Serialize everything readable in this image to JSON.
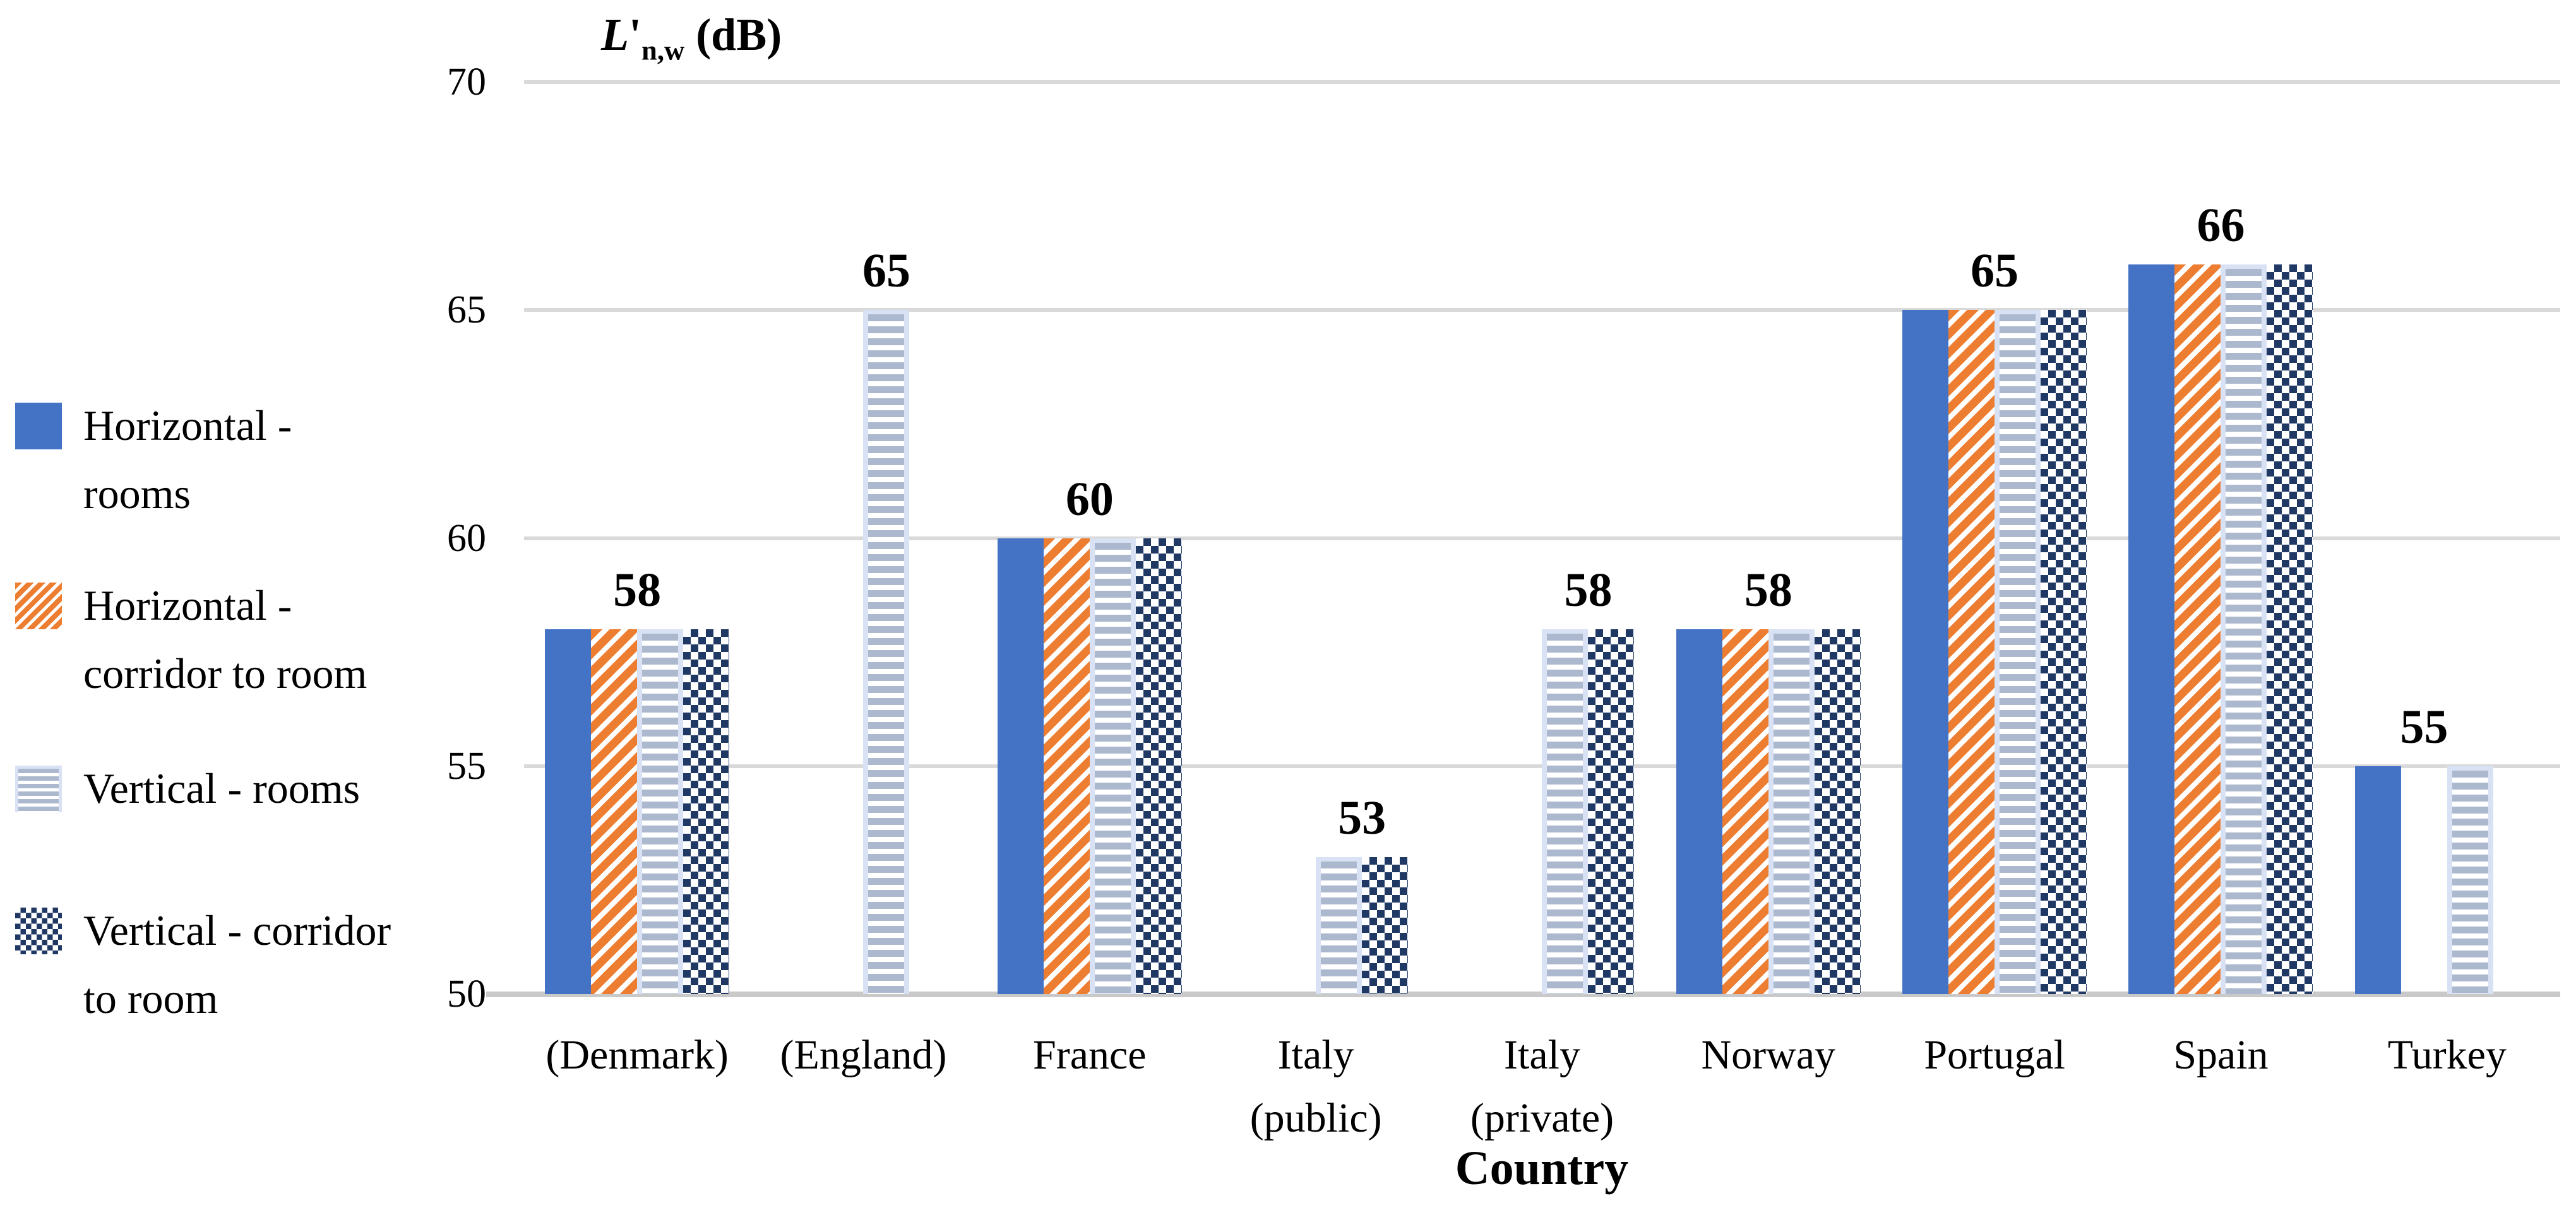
{
  "title": {
    "symbol": "L",
    "prime": "'",
    "subscript": "n,w",
    "unit": " (dB)"
  },
  "colors": {
    "horizontal_rooms": "#4472C4",
    "horizontal_corridor": "#ED7D31",
    "vertical_rooms_stripe": "#ABB8CD",
    "vertical_rooms_border": "#D9E2F4",
    "vertical_corridor": "#1F3864",
    "gridline": "#D9D9D9",
    "axis_line": "#C9C9C9"
  },
  "legend": [
    {
      "pattern": "solid-blue",
      "lines": [
        "Horizontal -",
        "rooms"
      ]
    },
    {
      "pattern": "orange-diagonal",
      "lines": [
        "Horizontal -",
        "corridor to room"
      ]
    },
    {
      "pattern": "light-stripes",
      "lines": [
        "Vertical - rooms"
      ]
    },
    {
      "pattern": "navy-checker",
      "lines": [
        "Vertical - corridor",
        "to room"
      ]
    }
  ],
  "chart_data": {
    "type": "bar",
    "title": "L'n,w (dB)",
    "xlabel": "Country",
    "ylabel": "L'n,w (dB)",
    "ylim": [
      50,
      70
    ],
    "y_ticks": [
      70,
      65,
      60,
      55,
      50
    ],
    "grid": true,
    "legend_position": "left",
    "categories": [
      "(Denmark)",
      "(England)",
      "France",
      "Italy (public)",
      "Italy (private)",
      "Norway",
      "Portugal",
      "Spain",
      "Turkey"
    ],
    "category_label_lines": [
      [
        "(Denmark)"
      ],
      [
        "(England)"
      ],
      [
        "France"
      ],
      [
        "Italy",
        "(public)"
      ],
      [
        "Italy",
        "(private)"
      ],
      [
        "Norway"
      ],
      [
        "Portugal"
      ],
      [
        "Spain"
      ],
      [
        "Turkey"
      ]
    ],
    "series": [
      {
        "name": "Horizontal - rooms",
        "pattern": "solid-blue",
        "values": [
          58,
          null,
          60,
          null,
          null,
          58,
          65,
          66,
          55
        ]
      },
      {
        "name": "Horizontal - corridor to room",
        "pattern": "orange-diagonal",
        "values": [
          58,
          null,
          60,
          null,
          null,
          58,
          65,
          66,
          null
        ]
      },
      {
        "name": "Vertical - rooms",
        "pattern": "light-stripes",
        "values": [
          58,
          65,
          60,
          53,
          58,
          58,
          65,
          66,
          55
        ]
      },
      {
        "name": "Vertical - corridor to room",
        "pattern": "navy-checker",
        "values": [
          58,
          null,
          60,
          53,
          58,
          58,
          65,
          66,
          null
        ]
      }
    ],
    "value_labels": [
      58,
      65,
      60,
      53,
      58,
      58,
      65,
      66,
      55
    ]
  }
}
